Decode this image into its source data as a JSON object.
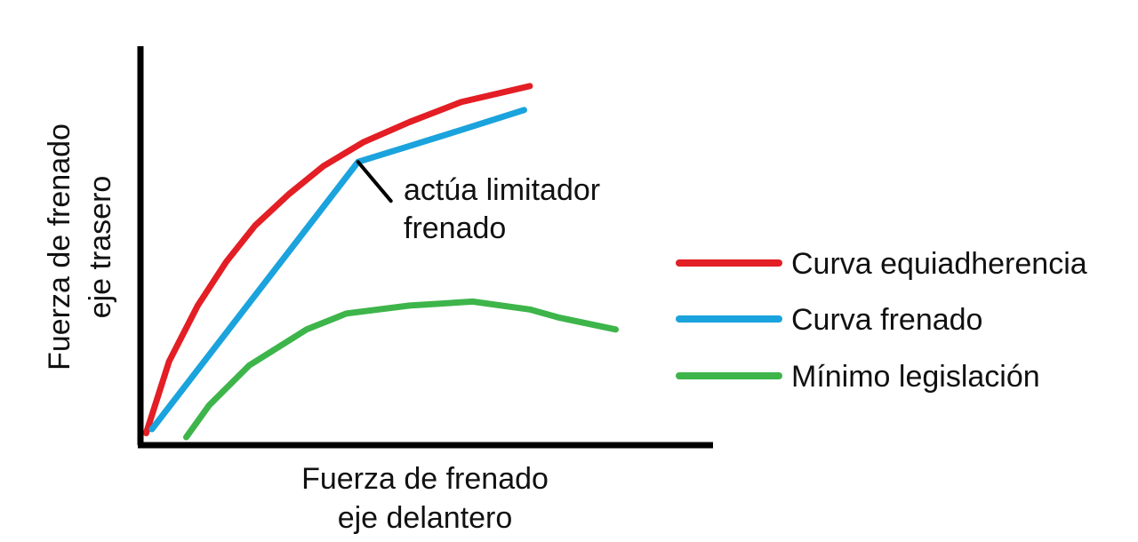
{
  "chart_data": {
    "type": "line",
    "title": "",
    "xlabel": [
      "Fuerza de frenado",
      "eje delantero"
    ],
    "ylabel": [
      "Fuerza de frenado",
      "eje trasero"
    ],
    "xlim": [
      0,
      100
    ],
    "ylim": [
      0,
      100
    ],
    "axis_ticks": false,
    "grid": false,
    "legend_position": "right",
    "series": [
      {
        "name": "Curva equiadherencia",
        "color": "#e31e24",
        "x": [
          1,
          5,
          10,
          15,
          20,
          26,
          32,
          39,
          47,
          56,
          62,
          68
        ],
        "y": [
          3,
          21,
          35,
          46,
          55,
          63,
          70,
          76,
          81,
          86,
          88,
          90
        ]
      },
      {
        "name": "Curva frenado",
        "color": "#1aa3dd",
        "x": [
          2,
          38,
          47,
          56,
          67
        ],
        "y": [
          4,
          71,
          75,
          79,
          84
        ]
      },
      {
        "name": "Mínimo legislación",
        "color": "#3db54a",
        "x": [
          8,
          12,
          19,
          29,
          36,
          47,
          58,
          68,
          73,
          83
        ],
        "y": [
          2,
          10,
          20,
          29,
          33,
          35,
          36,
          34,
          32,
          29
        ]
      }
    ],
    "annotations": [
      {
        "text_lines": [
          "actúa limitador",
          "frenado"
        ],
        "x": 38,
        "y": 71
      }
    ]
  }
}
